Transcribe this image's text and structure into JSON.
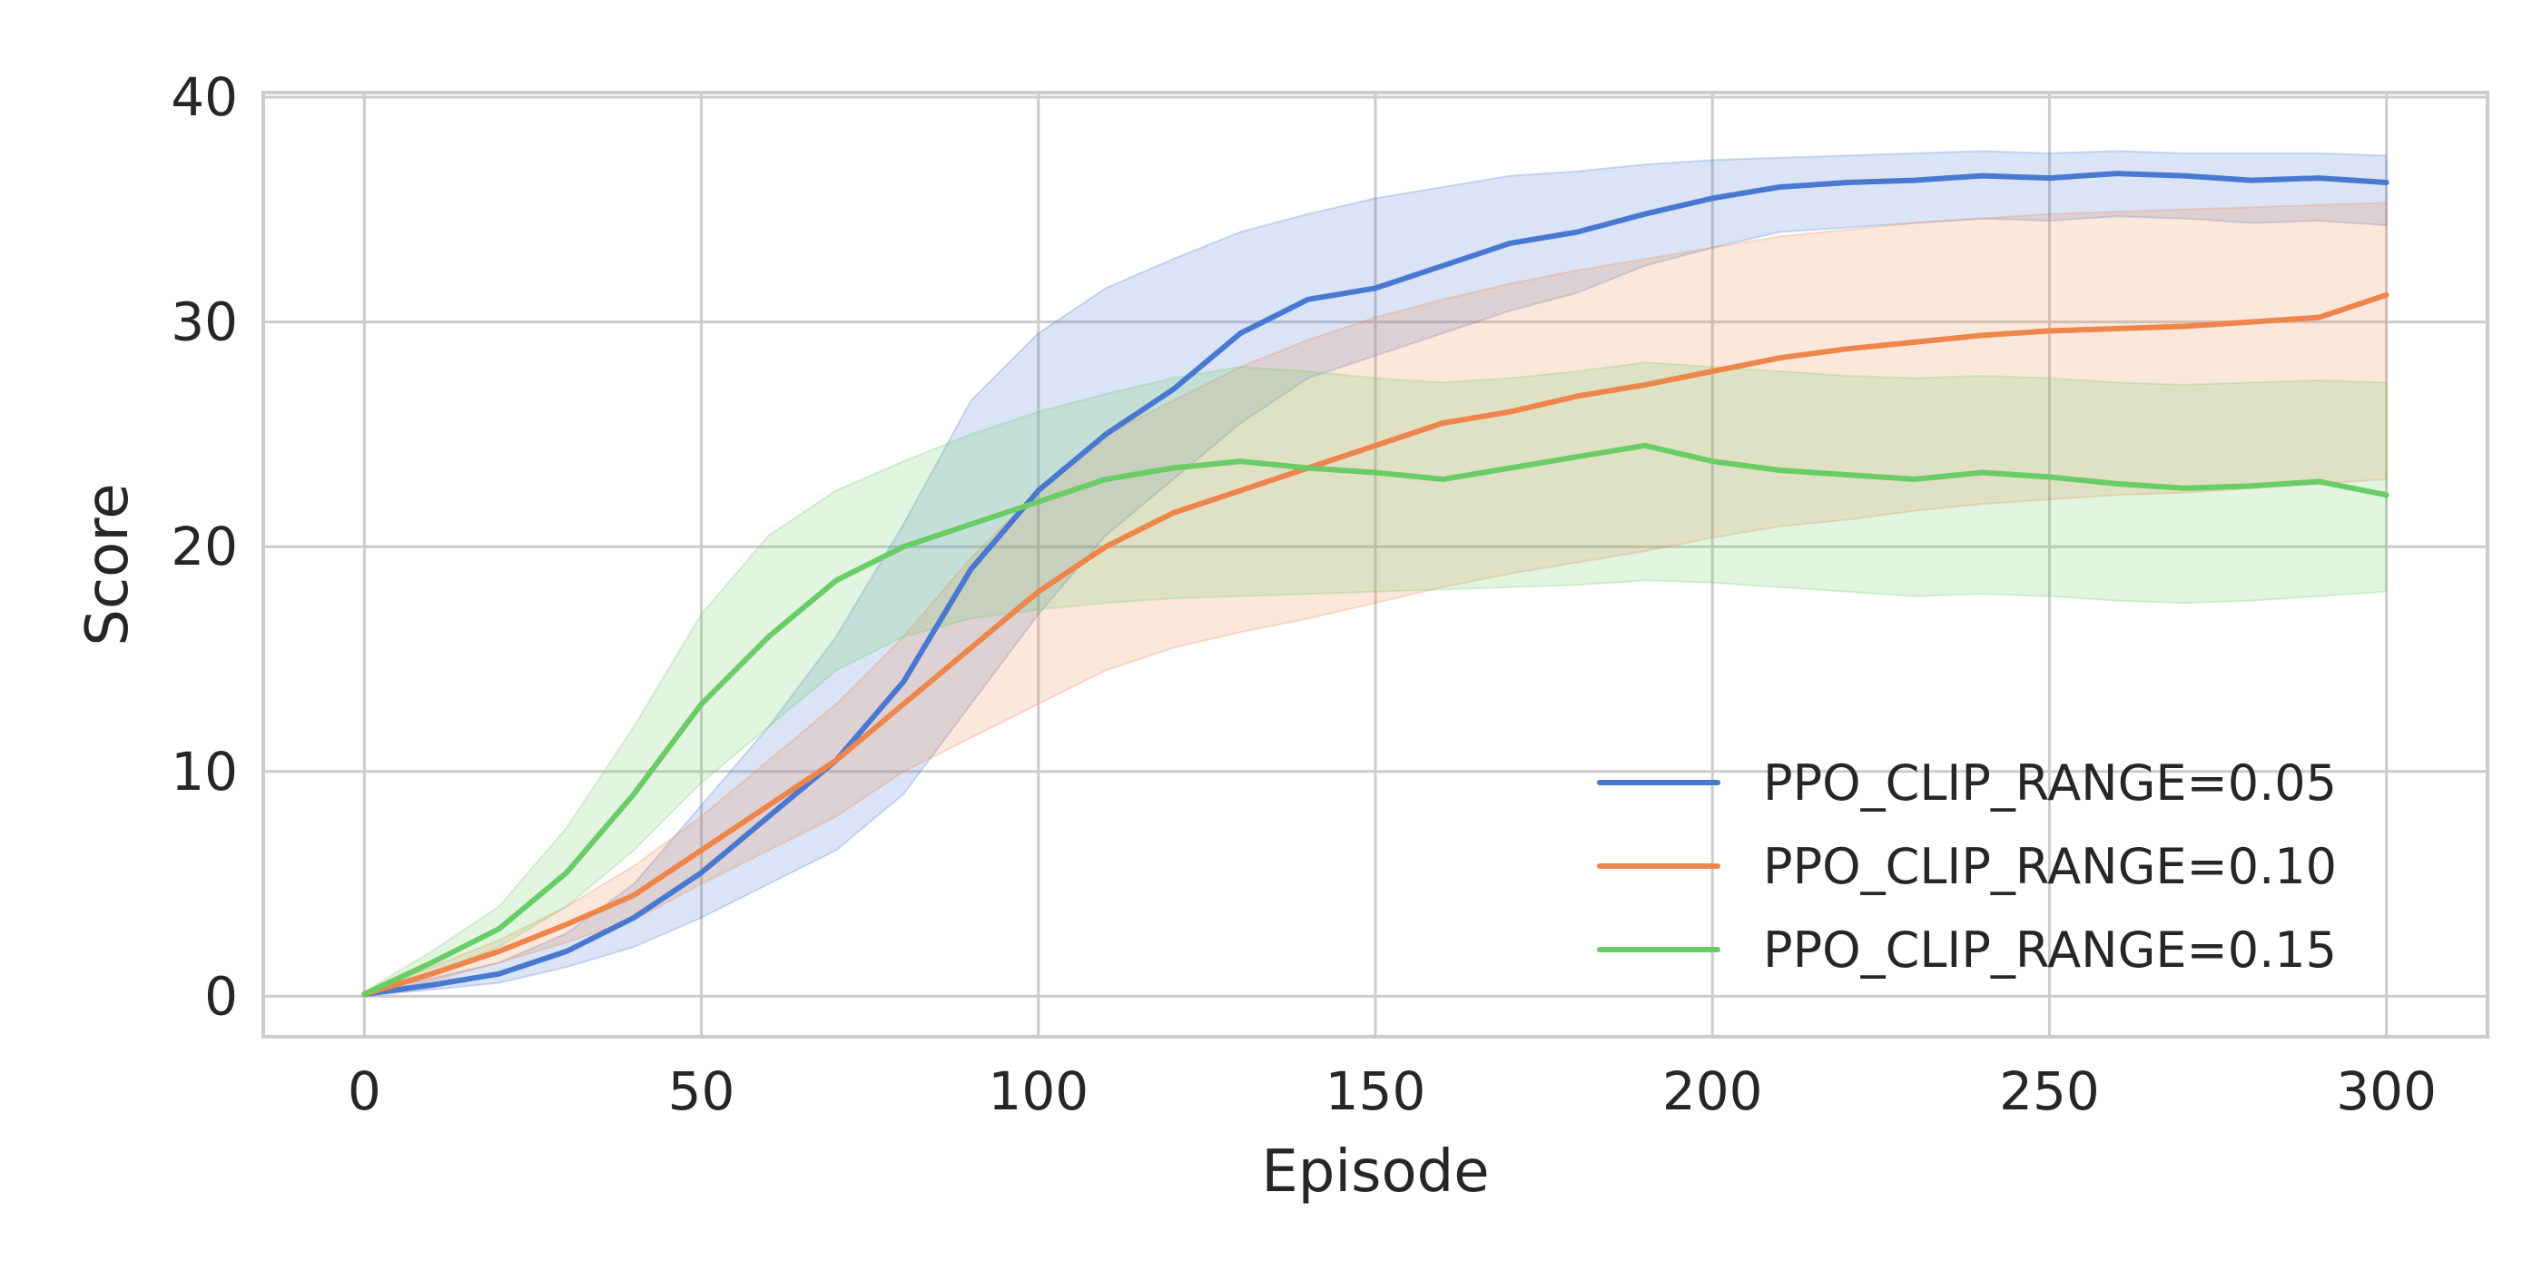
{
  "chart_data": {
    "type": "line",
    "title": "",
    "xlabel": "Episode",
    "ylabel": "Score",
    "xlim": [
      -15,
      315
    ],
    "ylim": [
      -1.8,
      40.2
    ],
    "xticks": [
      0,
      50,
      100,
      150,
      200,
      250,
      300
    ],
    "xtick_labels": [
      "0",
      "50",
      "100",
      "150",
      "200",
      "250",
      "300"
    ],
    "yticks": [
      0,
      10,
      20,
      30,
      40
    ],
    "ytick_labels": [
      "0",
      "10",
      "20",
      "30",
      "40"
    ],
    "grid": true,
    "legend_position": "lower-right",
    "series": [
      {
        "name": "PPO_CLIP_RANGE=0.05",
        "color": "#4878d0",
        "band_opacity": 0.2,
        "x": [
          0,
          10,
          20,
          30,
          40,
          50,
          60,
          70,
          80,
          90,
          100,
          110,
          120,
          130,
          140,
          150,
          160,
          170,
          180,
          190,
          200,
          210,
          220,
          230,
          240,
          250,
          260,
          270,
          280,
          290,
          300
        ],
        "y": [
          0.1,
          0.5,
          1.0,
          2.0,
          3.5,
          5.5,
          8.0,
          10.5,
          14.0,
          19.0,
          22.5,
          25.0,
          27.0,
          29.5,
          31.0,
          31.5,
          32.5,
          33.5,
          34.0,
          34.8,
          35.5,
          36.0,
          36.2,
          36.3,
          36.5,
          36.4,
          36.6,
          36.5,
          36.3,
          36.4,
          36.2
        ],
        "lower": [
          0.0,
          0.3,
          0.6,
          1.3,
          2.2,
          3.5,
          5.0,
          6.5,
          9.0,
          13.0,
          17.0,
          20.5,
          23.0,
          25.5,
          27.5,
          28.5,
          29.5,
          30.5,
          31.3,
          32.5,
          33.3,
          34.0,
          34.2,
          34.4,
          34.6,
          34.5,
          34.7,
          34.6,
          34.4,
          34.5,
          34.3
        ],
        "upper": [
          0.2,
          0.8,
          1.5,
          2.8,
          5.0,
          8.5,
          12.0,
          16.0,
          21.0,
          26.5,
          29.5,
          31.5,
          32.8,
          34.0,
          34.8,
          35.5,
          36.0,
          36.5,
          36.7,
          37.0,
          37.2,
          37.3,
          37.4,
          37.5,
          37.6,
          37.5,
          37.6,
          37.5,
          37.5,
          37.5,
          37.4
        ]
      },
      {
        "name": "PPO_CLIP_RANGE=0.10",
        "color": "#ee854a",
        "band_opacity": 0.2,
        "x": [
          0,
          10,
          20,
          30,
          40,
          50,
          60,
          70,
          80,
          90,
          100,
          110,
          120,
          130,
          140,
          150,
          160,
          170,
          180,
          190,
          200,
          210,
          220,
          230,
          240,
          250,
          260,
          270,
          280,
          290,
          300
        ],
        "y": [
          0.1,
          1.0,
          2.0,
          3.2,
          4.5,
          6.5,
          8.5,
          10.5,
          13.0,
          15.5,
          18.0,
          20.0,
          21.5,
          22.5,
          23.5,
          24.5,
          25.5,
          26.0,
          26.7,
          27.2,
          27.8,
          28.4,
          28.8,
          29.1,
          29.4,
          29.6,
          29.7,
          29.8,
          30.0,
          30.2,
          31.2
        ],
        "lower": [
          0.0,
          0.7,
          1.5,
          2.4,
          3.4,
          5.0,
          6.5,
          8.0,
          10.0,
          11.5,
          13.0,
          14.5,
          15.5,
          16.2,
          16.8,
          17.5,
          18.2,
          18.8,
          19.3,
          19.8,
          20.4,
          20.9,
          21.2,
          21.6,
          21.9,
          22.1,
          22.3,
          22.4,
          22.6,
          22.8,
          23.0
        ],
        "upper": [
          0.2,
          1.3,
          2.5,
          4.0,
          5.8,
          8.0,
          10.5,
          13.0,
          16.0,
          19.5,
          22.5,
          25.0,
          26.5,
          28.0,
          29.2,
          30.2,
          31.0,
          31.7,
          32.3,
          32.8,
          33.3,
          33.8,
          34.1,
          34.4,
          34.6,
          34.8,
          34.9,
          35.0,
          35.1,
          35.2,
          35.3
        ]
      },
      {
        "name": "PPO_CLIP_RANGE=0.15",
        "color": "#6acc64",
        "band_opacity": 0.2,
        "x": [
          0,
          10,
          20,
          30,
          40,
          50,
          60,
          70,
          80,
          90,
          100,
          110,
          120,
          130,
          140,
          150,
          160,
          170,
          180,
          190,
          200,
          210,
          220,
          230,
          240,
          250,
          260,
          270,
          280,
          290,
          300
        ],
        "y": [
          0.1,
          1.5,
          3.0,
          5.5,
          9.0,
          13.0,
          16.0,
          18.5,
          20.0,
          21.0,
          22.0,
          23.0,
          23.5,
          23.8,
          23.5,
          23.3,
          23.0,
          23.5,
          24.0,
          24.5,
          23.8,
          23.4,
          23.2,
          23.0,
          23.3,
          23.1,
          22.8,
          22.6,
          22.7,
          22.9,
          22.3
        ],
        "lower": [
          0.0,
          1.0,
          2.2,
          4.0,
          6.5,
          9.5,
          12.0,
          14.5,
          16.0,
          16.8,
          17.2,
          17.5,
          17.7,
          17.8,
          17.9,
          18.0,
          18.1,
          18.2,
          18.3,
          18.5,
          18.4,
          18.2,
          18.0,
          17.8,
          17.9,
          17.8,
          17.6,
          17.5,
          17.6,
          17.8,
          18.0
        ],
        "upper": [
          0.2,
          2.0,
          4.0,
          7.5,
          12.0,
          17.0,
          20.5,
          22.5,
          23.8,
          25.0,
          26.0,
          26.8,
          27.5,
          28.0,
          27.8,
          27.5,
          27.3,
          27.5,
          27.8,
          28.2,
          28.0,
          27.8,
          27.6,
          27.5,
          27.6,
          27.5,
          27.3,
          27.2,
          27.3,
          27.4,
          27.3
        ]
      }
    ]
  }
}
